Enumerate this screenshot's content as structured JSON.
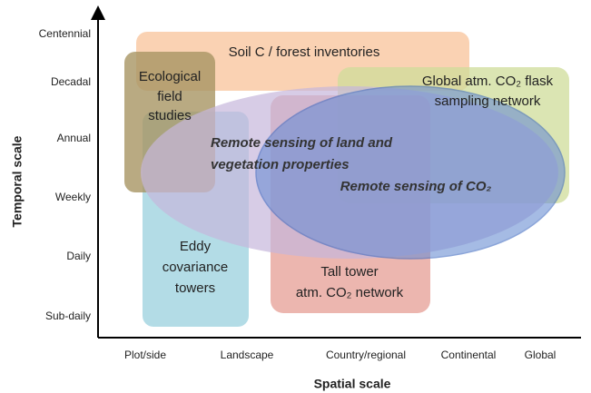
{
  "axes": {
    "x_label": "Spatial scale",
    "y_label": "Temporal scale",
    "x_ticks": [
      "Plot/side",
      "Landscape",
      "Country/regional",
      "Continental",
      "Global"
    ],
    "y_ticks": [
      "Centennial",
      "Decadal",
      "Annual",
      "Weekly",
      "Daily",
      "Sub-daily"
    ]
  },
  "regions": [
    {
      "lines": [
        "Soil C / forest inventories"
      ]
    },
    {
      "lines": [
        "Ecological",
        "field",
        "studies"
      ]
    },
    {
      "lines": [
        "Global atm. CO₂ flask",
        "sampling network"
      ]
    },
    {
      "lines": [
        "Eddy",
        "covariance",
        "towers"
      ]
    },
    {
      "lines": [
        "Tall tower",
        "atm. CO₂ network"
      ]
    },
    {
      "lines": [
        "Remote sensing of land and",
        "vegetation properties"
      ]
    },
    {
      "lines": [
        "Remote sensing of CO₂"
      ]
    }
  ]
}
